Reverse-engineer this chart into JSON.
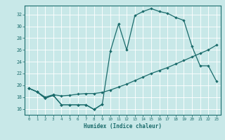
{
  "xlabel": "Humidex (Indice chaleur)",
  "background_color": "#c8e8e8",
  "grid_color": "#ffffff",
  "line_color": "#1a6b6b",
  "xlim": [
    -0.5,
    23.5
  ],
  "ylim": [
    15.0,
    33.5
  ],
  "xticks": [
    0,
    1,
    2,
    3,
    4,
    5,
    6,
    7,
    8,
    9,
    10,
    11,
    12,
    13,
    14,
    15,
    16,
    17,
    18,
    19,
    20,
    21,
    22,
    23
  ],
  "yticks": [
    16,
    18,
    20,
    22,
    24,
    26,
    28,
    30,
    32
  ],
  "line1_x": [
    0,
    1,
    2,
    3,
    4,
    5,
    6,
    7,
    8,
    9
  ],
  "line1_y": [
    19.5,
    18.9,
    17.8,
    18.3,
    16.7,
    16.7,
    16.7,
    16.7,
    15.9,
    16.8
  ],
  "line2_x": [
    0,
    1,
    2,
    3,
    4,
    5,
    6,
    7,
    8,
    9,
    10,
    11,
    12,
    13,
    14,
    15,
    16,
    17,
    18,
    19,
    20,
    21,
    22,
    23
  ],
  "line2_y": [
    19.5,
    18.9,
    18.0,
    18.4,
    18.2,
    18.3,
    18.5,
    18.6,
    18.6,
    18.8,
    19.2,
    19.7,
    20.2,
    20.8,
    21.4,
    22.0,
    22.5,
    23.0,
    23.6,
    24.2,
    24.8,
    25.4,
    26.0,
    26.8
  ],
  "line3_x": [
    0,
    1,
    2,
    3,
    4,
    5,
    6,
    7,
    8,
    9,
    10,
    11,
    12,
    13,
    14,
    15,
    16,
    17,
    18,
    19,
    20,
    21,
    22,
    23
  ],
  "line3_y": [
    19.5,
    18.9,
    17.8,
    18.3,
    16.7,
    16.7,
    16.7,
    16.7,
    15.9,
    16.8,
    25.8,
    30.4,
    26.0,
    31.8,
    32.5,
    33.0,
    32.5,
    32.2,
    31.5,
    31.0,
    26.6,
    23.3,
    23.3,
    20.7
  ]
}
